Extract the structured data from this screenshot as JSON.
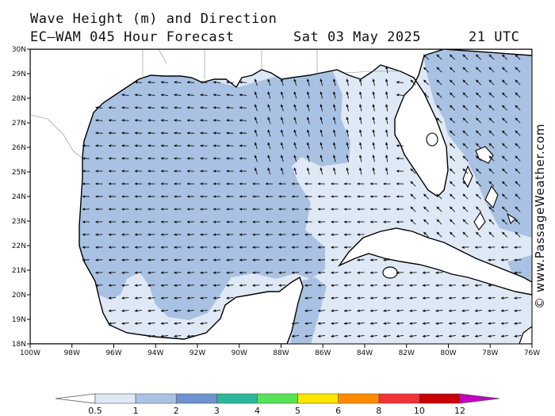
{
  "header": {
    "title": "Wave Height (m) and Direction",
    "forecast": "EC—WAM 045 Hour Forecast",
    "date": "Sat 03 May 2025",
    "time": "21 UTC"
  },
  "watermark": "© www.PassageWeather.com",
  "map": {
    "region": "Gulf of Mexico",
    "lon_labels": [
      "100W",
      "98W",
      "96W",
      "94W",
      "92W",
      "90W",
      "88W",
      "86W",
      "84W",
      "82W",
      "80W",
      "78W",
      "76W"
    ],
    "lat_labels": [
      "18N",
      "19N",
      "20N",
      "21N",
      "22N",
      "23N",
      "24N",
      "25N",
      "26N",
      "27N",
      "28N",
      "29N",
      "30N"
    ],
    "land_color": "#ffffff",
    "coast_color": "#000000",
    "arrow_color": "#111111"
  },
  "colorbar": {
    "labels": [
      "0.5",
      "1",
      "2",
      "3",
      "4",
      "5",
      "6",
      "8",
      "10",
      "12"
    ],
    "colors": [
      "#dfe8f5",
      "#aac3e4",
      "#6c93d0",
      "#2ab79a",
      "#55e455",
      "#ffe600",
      "#ff8c00",
      "#ee3333",
      "#c40000",
      "#c400c4"
    ]
  }
}
